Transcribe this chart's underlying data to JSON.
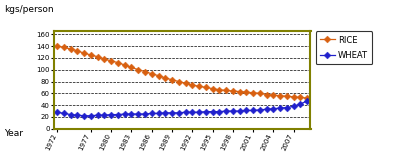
{
  "years": [
    1972,
    1973,
    1974,
    1975,
    1976,
    1977,
    1978,
    1979,
    1980,
    1981,
    1982,
    1983,
    1984,
    1985,
    1986,
    1987,
    1988,
    1989,
    1990,
    1991,
    1992,
    1993,
    1994,
    1995,
    1996,
    1997,
    1998,
    1999,
    2000,
    2001,
    2002,
    2003,
    2004,
    2005,
    2006,
    2007,
    2008,
    2009
  ],
  "rice": [
    140,
    138,
    135,
    132,
    128,
    125,
    122,
    118,
    115,
    112,
    108,
    104,
    100,
    97,
    93,
    90,
    86,
    83,
    80,
    77,
    74,
    72,
    70,
    68,
    66,
    65,
    64,
    63,
    62,
    61,
    60,
    58,
    57,
    56,
    55,
    54,
    53,
    52
  ],
  "wheat": [
    28,
    26,
    24,
    23,
    22,
    22,
    23,
    23,
    24,
    24,
    25,
    25,
    25,
    25,
    26,
    26,
    27,
    27,
    27,
    28,
    28,
    28,
    29,
    29,
    29,
    30,
    30,
    30,
    31,
    31,
    32,
    33,
    34,
    35,
    36,
    38,
    42,
    47
  ],
  "rice_color": "#D86010",
  "wheat_color": "#2020CC",
  "border_color": "#808000",
  "top_label": "kgs/person",
  "xlabel": "Year",
  "xtick_labels": [
    "1972",
    "1977",
    "1980",
    "1983",
    "1986",
    "1989",
    "1992",
    "1995",
    "1998",
    "2001",
    "2004",
    "2007"
  ],
  "xtick_positions": [
    1972,
    1977,
    1980,
    1983,
    1986,
    1989,
    1992,
    1995,
    1998,
    2001,
    2004,
    2007
  ],
  "ylim": [
    0,
    165
  ],
  "yticks": [
    0,
    20,
    40,
    60,
    80,
    100,
    120,
    140,
    160
  ],
  "legend_rice": "RICE",
  "legend_wheat": "WHEAT",
  "bg_color": "#FFFFFF",
  "plot_bg": "#FFFFFF",
  "marker_size": 3.5,
  "line_width": 0.9
}
